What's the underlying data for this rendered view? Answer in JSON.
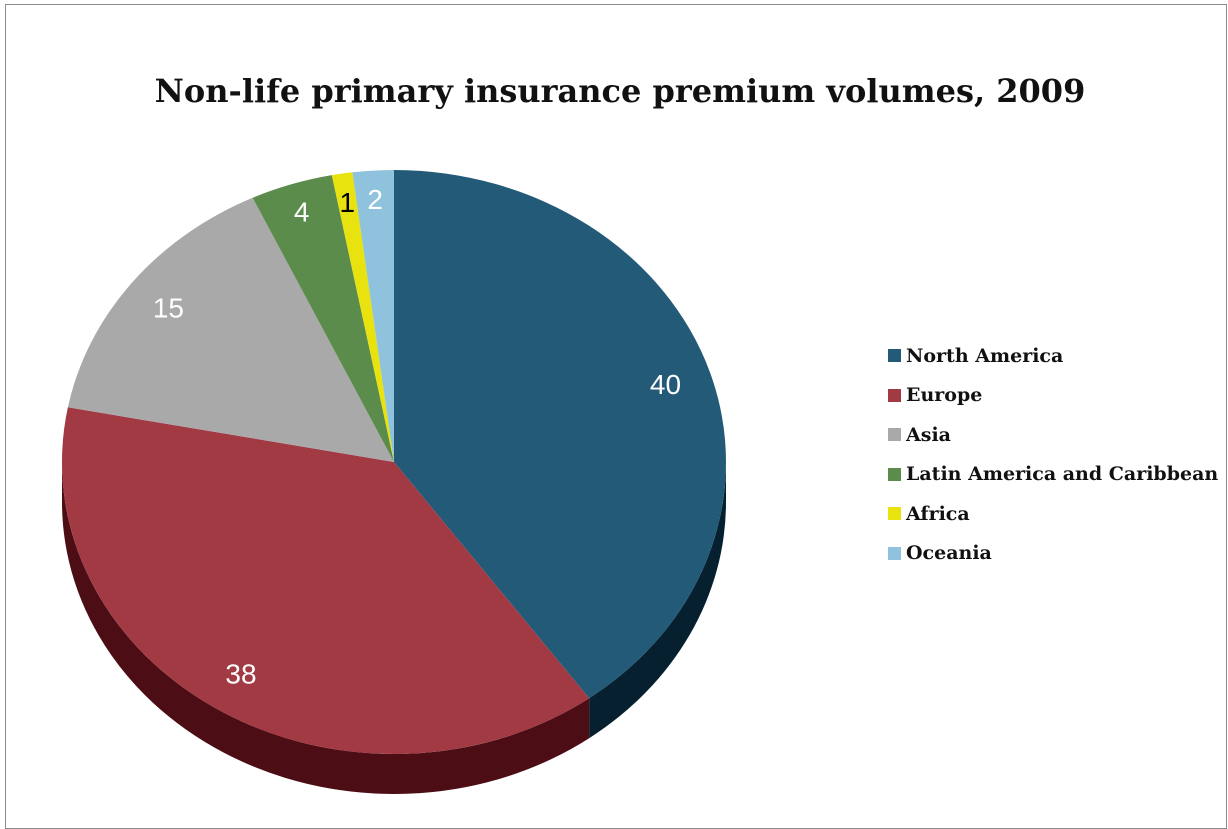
{
  "chart_data": {
    "type": "pie",
    "title": "Non-life primary insurance premium volumes, 2009",
    "categories": [
      "North America",
      "Europe",
      "Asia",
      "Latin America and Caribbean",
      "Africa",
      "Oceania"
    ],
    "values": [
      40,
      38,
      15,
      4,
      1,
      2
    ],
    "labels": [
      "40",
      "38",
      "15",
      "4",
      "1",
      "2"
    ],
    "colors": [
      "#225a78",
      "#a23a44",
      "#a9a9a9",
      "#5b8c4c",
      "#e8e20e",
      "#8fc2dc"
    ],
    "side_colors": [
      "#062030",
      "#4c0e14",
      "#555555",
      "#24401c",
      "#6a6606",
      "#3e6a80"
    ],
    "label_colors": [
      "#ffffff",
      "#ffffff",
      "#ffffff",
      "#ffffff",
      "#000000",
      "#ffffff"
    ],
    "legend_position": "right",
    "style": "3d"
  }
}
